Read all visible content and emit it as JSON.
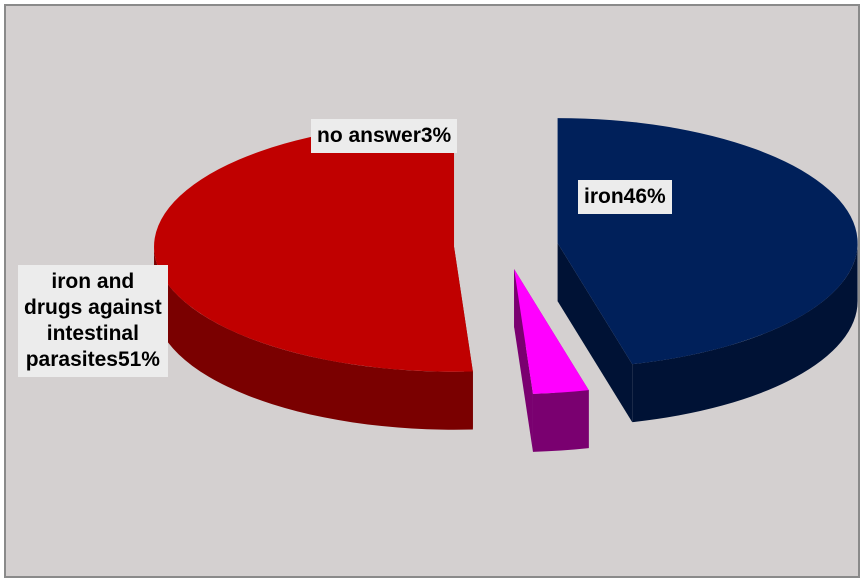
{
  "chart_data": {
    "type": "pie",
    "style": "3d-exploded",
    "slices": [
      {
        "label": "iron",
        "value": 46,
        "display": "iron46%",
        "color": "#00205a",
        "side_color": "#001235"
      },
      {
        "label": "no answer",
        "value": 3,
        "display": "no answer3%",
        "color": "#ff00ff",
        "side_color": "#7a0070"
      },
      {
        "label": "iron and drugs against intestinal parasites",
        "value": 51,
        "display_lines": [
          "iron and",
          "drugs against",
          "intestinal",
          "parasites51%"
        ],
        "color": "#c00000",
        "side_color": "#7a0000"
      }
    ],
    "title": "",
    "legend": "none",
    "background_color": "#d4d0d0"
  }
}
